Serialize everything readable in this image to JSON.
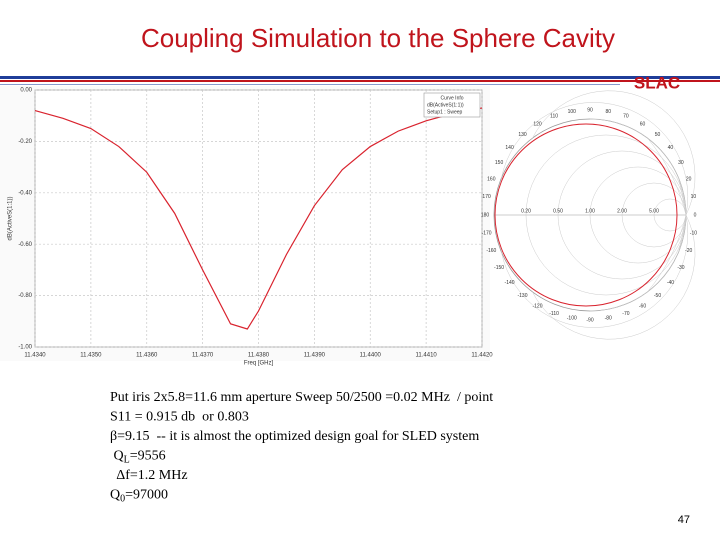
{
  "title": "Coupling Simulation to the Sphere Cavity",
  "logo": "SLAC",
  "chart_data": {
    "type": "line",
    "y_label": "dB(ActiveS(1:1))",
    "x_label": "Freq [GHz]",
    "legend": [
      "Curve Info",
      "dB(ActiveS(1:1))",
      "Setup1 : Sweep"
    ],
    "x": [
      11.434,
      11.4345,
      11.435,
      11.4355,
      11.436,
      11.4365,
      11.437,
      11.4375,
      11.4378,
      11.438,
      11.4385,
      11.439,
      11.4395,
      11.44,
      11.4405,
      11.441,
      11.4415,
      11.442
    ],
    "series": [
      {
        "name": "dB(ActiveS(1:1))",
        "color": "#d9232e",
        "values": [
          -0.08,
          -0.11,
          -0.15,
          -0.22,
          -0.32,
          -0.48,
          -0.7,
          -0.91,
          -0.93,
          -0.86,
          -0.64,
          -0.45,
          -0.31,
          -0.22,
          -0.16,
          -0.12,
          -0.09,
          -0.07
        ]
      }
    ],
    "xlim": [
      11.434,
      11.442
    ],
    "xticks": [
      {
        "value": 11.434,
        "label": "11.4340"
      },
      {
        "value": 11.435,
        "label": "11.4350"
      },
      {
        "value": 11.436,
        "label": "11.4360"
      },
      {
        "value": 11.437,
        "label": "11.4370"
      },
      {
        "value": 11.438,
        "label": "11.4380"
      },
      {
        "value": 11.439,
        "label": "11.4390"
      },
      {
        "value": 11.44,
        "label": "11.4400"
      },
      {
        "value": 11.441,
        "label": "11.4410"
      },
      {
        "value": 11.442,
        "label": "11.4420"
      }
    ],
    "ylim": [
      -1,
      0
    ],
    "yticks": [
      {
        "value": 0,
        "label": "0.00"
      },
      {
        "value": -0.2,
        "label": "-0.20"
      },
      {
        "value": -0.4,
        "label": "-0.40"
      },
      {
        "value": -0.6,
        "label": "-0.60"
      },
      {
        "value": -0.8,
        "label": "-0.80"
      },
      {
        "value": -1,
        "label": "-1.00"
      }
    ],
    "grid": true
  },
  "smith": {
    "angle_labels": [
      "0",
      "10",
      "20",
      "30",
      "40",
      "50",
      "60",
      "70",
      "80",
      "90",
      "100",
      "110",
      "120",
      "130",
      "140",
      "150",
      "160",
      "170",
      "180",
      "-170",
      "-160",
      "-150",
      "-140",
      "-130",
      "-120",
      "-110",
      "-100",
      "-90",
      "-80",
      "-70",
      "-60",
      "-50",
      "-40",
      "-30",
      "-20",
      "-10"
    ],
    "resistance_labels": [
      "0.20",
      "0.50",
      "1.00",
      "2.00",
      "5.00"
    ]
  },
  "notes": [
    {
      "text": "Put iris 2x5.8=11.6 mm aperture Sweep 50/2500 =0.02 MHz  / point"
    },
    {
      "text": "S11 = 0.915 db  or 0.803"
    },
    {
      "text": "β=9.15  -- it is almost the optimized design goal for SLED system"
    },
    {
      "main": " Q",
      "sub": "L",
      "rest": "=9556"
    },
    {
      "text": "  Δf=1.2 MHz"
    },
    {
      "main": "Q",
      "sub": "0",
      "rest": "=97000"
    }
  ],
  "page_number": "47"
}
